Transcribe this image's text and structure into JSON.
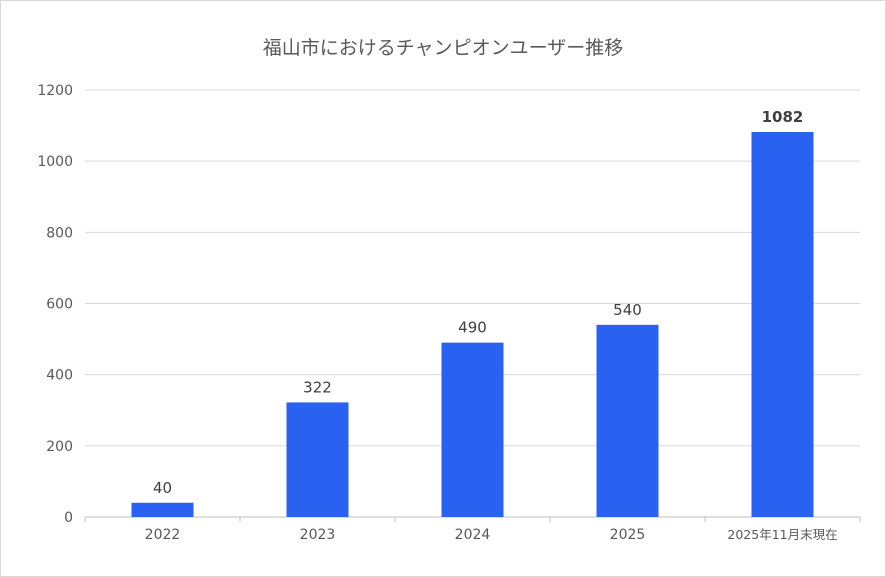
{
  "chart_data": {
    "type": "bar",
    "title": "福山市におけるチャンピオンユーザー推移",
    "xlabel": "",
    "ylabel": "",
    "categories": [
      "2022",
      "2023",
      "2024",
      "2025",
      "2025年11月末現在"
    ],
    "values": [
      40,
      322,
      490,
      540,
      1082
    ],
    "data_labels": [
      "40",
      "322",
      "490",
      "540",
      "1082"
    ],
    "ylim": [
      0,
      1200
    ],
    "yticks": [
      0,
      200,
      400,
      600,
      800,
      1000,
      1200
    ],
    "grid": true,
    "legend": "none",
    "bar_color": "#2962f0"
  }
}
